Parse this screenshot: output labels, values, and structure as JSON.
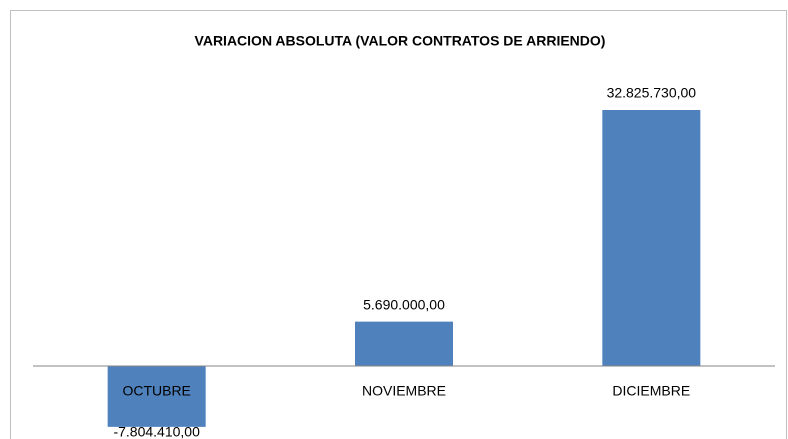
{
  "chart_data": {
    "type": "bar",
    "title": "VARIACION ABSOLUTA (VALOR CONTRATOS DE ARRIENDO)",
    "categories": [
      "OCTUBRE",
      "NOVIEMBRE",
      "DICIEMBRE"
    ],
    "values": [
      -7804410,
      5690000,
      32825730
    ],
    "value_labels": [
      "-7.804.410,00",
      "5.690.000,00",
      "32.825.730,00"
    ],
    "color": "#4f81bd"
  }
}
